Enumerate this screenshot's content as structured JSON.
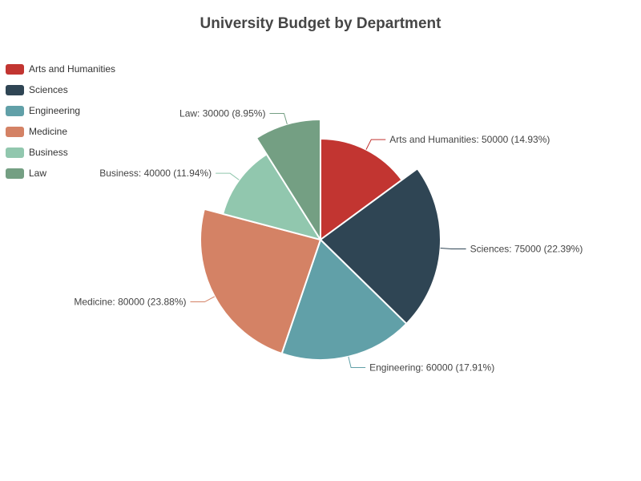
{
  "chart_data": {
    "type": "pie",
    "title": "University Budget by Department",
    "legend_position": "top-left",
    "slices": [
      {
        "name": "Arts and Humanities",
        "value": 50000,
        "percent": "14.93%",
        "color": "#c23531"
      },
      {
        "name": "Sciences",
        "value": 75000,
        "percent": "22.39%",
        "color": "#2f4554"
      },
      {
        "name": "Engineering",
        "value": 60000,
        "percent": "17.91%",
        "color": "#61a0a8"
      },
      {
        "name": "Medicine",
        "value": 80000,
        "percent": "23.88%",
        "color": "#d48265"
      },
      {
        "name": "Business",
        "value": 40000,
        "percent": "11.94%",
        "color": "#91c7ae"
      },
      {
        "name": "Law",
        "value": 30000,
        "percent": "8.95%",
        "color": "#749f83"
      }
    ]
  }
}
